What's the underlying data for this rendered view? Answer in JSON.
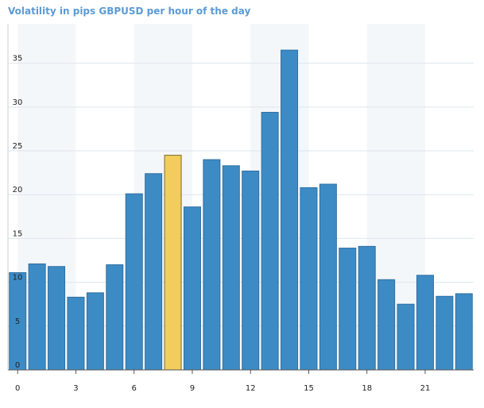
{
  "chart_data": {
    "type": "bar",
    "title": "Volatility in pips GBPUSD per hour of the day",
    "xlabel": "",
    "ylabel": "",
    "categories": [
      0,
      1,
      2,
      3,
      4,
      5,
      6,
      7,
      8,
      9,
      10,
      11,
      12,
      13,
      14,
      15,
      16,
      17,
      18,
      19,
      20,
      21,
      22,
      23
    ],
    "values": [
      11.1,
      12.1,
      11.8,
      8.3,
      8.8,
      12.0,
      20.1,
      22.4,
      24.5,
      18.6,
      24.0,
      23.3,
      22.7,
      29.4,
      36.5,
      20.8,
      21.2,
      13.9,
      14.1,
      10.3,
      7.5,
      10.8,
      8.4,
      8.7
    ],
    "highlighted_category": 8,
    "xticks": [
      0,
      3,
      6,
      9,
      12,
      15,
      18,
      21
    ],
    "yticks": [
      0,
      5,
      10,
      15,
      20,
      25,
      30,
      35
    ],
    "xlim": [
      -0.5,
      23.5
    ],
    "ylim": [
      0,
      39.5
    ],
    "grid": true,
    "legend": "none",
    "colors": {
      "title": "#5b9bd5",
      "bar": "#3d8bc4",
      "bar_edge": "#2f6fa3",
      "highlight": "#f2cc5d",
      "highlight_edge": "#7a6a30",
      "grid": "#dde6ef",
      "band": "#f4f7fa",
      "axis": "#555555",
      "tick_label": "#222222"
    }
  }
}
